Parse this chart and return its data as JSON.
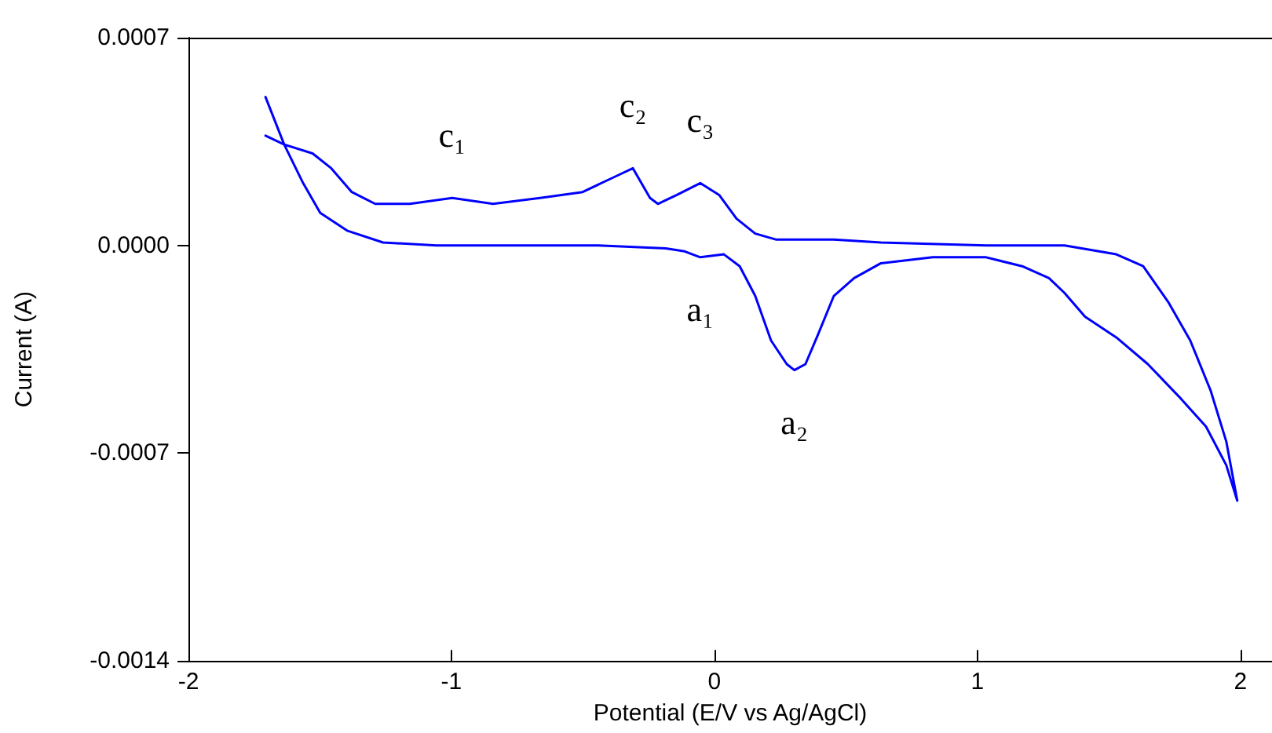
{
  "chart_data": {
    "type": "line",
    "xlabel": "Potential (E/V vs Ag/AgCl)",
    "ylabel": "Current (A)",
    "xlim": [
      -2,
      2.12
    ],
    "xticks": [
      -2,
      -1,
      0,
      1,
      2
    ],
    "ylim": [
      -0.0014,
      0.0007
    ],
    "yticks": [
      0.0007,
      {
        "value": 0,
        "label": "0.0000"
      },
      -0.0007,
      -0.0014
    ],
    "grid": false,
    "marker": "none",
    "line_style": "solid",
    "annotations": [
      {
        "text": "c₁",
        "x": -0.997,
        "y": 0.00016
      },
      {
        "text": "c₂",
        "x": -0.31,
        "y": 0.00026
      },
      {
        "text": "c₃",
        "x": -0.054,
        "y": 0.00021
      },
      {
        "text": "a₁",
        "x": -0.054,
        "y": -4e-05
      },
      {
        "text": "a₂",
        "x": 0.304,
        "y": -0.00042
      }
    ],
    "series": [
      {
        "color": "#0000ff",
        "x": [
          -1.707,
          -1.636,
          -1.564,
          -1.499,
          -1.397,
          -1.26,
          -1.057,
          -0.442,
          -0.185,
          -0.113,
          -0.054,
          0.036,
          0.096,
          0.155,
          0.215,
          0.275,
          0.304,
          0.346,
          0.394,
          0.454,
          0.531,
          0.633,
          0.83,
          1.033,
          1.17,
          1.272,
          1.331,
          1.409,
          1.528,
          1.648,
          1.767,
          1.869,
          1.946,
          1.988,
          1.946,
          1.887,
          1.809,
          1.725,
          1.63,
          1.528,
          1.331,
          1.033,
          0.633,
          0.454,
          0.233,
          0.155,
          0.084,
          0.018,
          -0.054,
          -0.143,
          -0.215,
          -0.245,
          -0.31,
          -0.382,
          -0.501,
          -0.663,
          -0.842,
          -0.997,
          -1.158,
          -1.29,
          -1.379,
          -1.457,
          -1.528,
          -1.636,
          -1.707
        ],
        "values": [
          0.0005,
          0.00034,
          0.00021,
          0.00011,
          5e-05,
          1e-05,
          0,
          0,
          -1e-05,
          -2e-05,
          -4e-05,
          -3e-05,
          -7e-05,
          -0.00017,
          -0.00032,
          -0.0004,
          -0.00042,
          -0.0004,
          -0.0003,
          -0.00017,
          -0.00011,
          -6e-05,
          -4e-05,
          -4e-05,
          -7e-05,
          -0.00011,
          -0.00016,
          -0.00024,
          -0.00031,
          -0.0004,
          -0.00051,
          -0.00061,
          -0.00074,
          -0.00086,
          -0.00066,
          -0.00049,
          -0.00032,
          -0.00019,
          -7e-05,
          -3e-05,
          0,
          0,
          1e-05,
          2e-05,
          2e-05,
          4e-05,
          9e-05,
          0.00017,
          0.00021,
          0.00017,
          0.00014,
          0.00016,
          0.00026,
          0.00023,
          0.00018,
          0.00016,
          0.00014,
          0.00016,
          0.00014,
          0.00014,
          0.00018,
          0.00026,
          0.00031,
          0.00034,
          0.00037
        ]
      }
    ]
  }
}
